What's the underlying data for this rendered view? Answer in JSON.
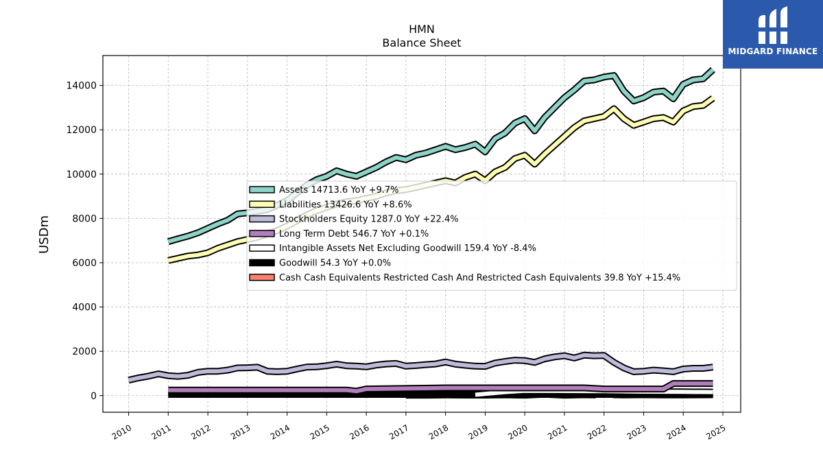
{
  "logo": {
    "text": "MIDGARD FINANCE",
    "background": "#2b5aad"
  },
  "chart_data": {
    "type": "line",
    "title": "HMN",
    "subtitle": "Balance  Sheet",
    "xlabel": "",
    "ylabel": "USDm",
    "xlim": [
      2009.35,
      2025.45
    ],
    "ylim": [
      -750,
      15350
    ],
    "grid": true,
    "legend_position": "center-right",
    "x_ticks": [
      2010,
      2011,
      2012,
      2013,
      2014,
      2015,
      2016,
      2017,
      2018,
      2019,
      2020,
      2021,
      2022,
      2023,
      2024,
      2025
    ],
    "x_tick_labels": [
      "2010",
      "2011",
      "2012",
      "2013",
      "2014",
      "2015",
      "2016",
      "2017",
      "2018",
      "2019",
      "2020",
      "2021",
      "2022",
      "2023",
      "2024",
      "2025"
    ],
    "y_ticks": [
      0,
      2000,
      4000,
      6000,
      8000,
      10000,
      12000,
      14000
    ],
    "y_tick_labels": [
      "0",
      "2000",
      "4000",
      "6000",
      "8000",
      "10000",
      "12000",
      "14000"
    ],
    "series": [
      {
        "name": "Assets",
        "legend_label": "Assets  14713.6 YoY +9.7%",
        "color": "#8dd3c7",
        "x": [
          2011.0,
          2011.25,
          2011.5,
          2011.75,
          2012.0,
          2012.25,
          2012.5,
          2012.75,
          2013.0,
          2013.25,
          2013.5,
          2013.75,
          2014.0,
          2014.25,
          2014.5,
          2014.75,
          2015.0,
          2015.25,
          2015.5,
          2015.75,
          2016.0,
          2016.25,
          2016.5,
          2016.75,
          2017.0,
          2017.25,
          2017.5,
          2017.75,
          2018.0,
          2018.25,
          2018.5,
          2018.75,
          2019.0,
          2019.25,
          2019.5,
          2019.75,
          2020.0,
          2020.25,
          2020.5,
          2020.75,
          2021.0,
          2021.25,
          2021.5,
          2021.75,
          2022.0,
          2022.25,
          2022.5,
          2022.75,
          2023.0,
          2023.25,
          2023.5,
          2023.75,
          2024.0,
          2024.25,
          2024.5,
          2024.75
        ],
        "values": [
          6950,
          7080,
          7200,
          7350,
          7550,
          7750,
          7920,
          8200,
          8250,
          8320,
          8400,
          8600,
          8800,
          9150,
          9500,
          9750,
          9900,
          10150,
          10000,
          9900,
          10100,
          10300,
          10550,
          10750,
          10650,
          10850,
          10950,
          11100,
          11250,
          11100,
          11200,
          11350,
          11000,
          11600,
          11850,
          12300,
          12500,
          11950,
          12550,
          13000,
          13450,
          13800,
          14200,
          14250,
          14380,
          14450,
          13750,
          13300,
          13450,
          13700,
          13750,
          13400,
          14050,
          14250,
          14300,
          14713.6
        ]
      },
      {
        "name": "Liabilities",
        "legend_label": "Liabilities  13426.6 YoY +8.6%",
        "color": "#ffffb3",
        "x": [
          2011.0,
          2011.25,
          2011.5,
          2011.75,
          2012.0,
          2012.25,
          2012.5,
          2012.75,
          2013.0,
          2013.25,
          2013.5,
          2013.75,
          2014.0,
          2014.25,
          2014.5,
          2014.75,
          2015.0,
          2015.25,
          2015.5,
          2015.75,
          2016.0,
          2016.25,
          2016.5,
          2016.75,
          2017.0,
          2017.25,
          2017.5,
          2017.75,
          2018.0,
          2018.25,
          2018.5,
          2018.75,
          2019.0,
          2019.25,
          2019.5,
          2019.75,
          2020.0,
          2020.25,
          2020.5,
          2020.75,
          2021.0,
          2021.25,
          2021.5,
          2021.75,
          2022.0,
          2022.25,
          2022.5,
          2022.75,
          2023.0,
          2023.25,
          2023.5,
          2023.75,
          2024.0,
          2024.25,
          2024.5,
          2024.75
        ],
        "values": [
          6100,
          6200,
          6300,
          6350,
          6450,
          6650,
          6800,
          6950,
          7050,
          7150,
          7300,
          7450,
          7650,
          7900,
          8150,
          8350,
          8500,
          8650,
          8750,
          8800,
          8900,
          9000,
          9150,
          9250,
          9300,
          9400,
          9500,
          9600,
          9700,
          9600,
          9850,
          10000,
          9700,
          10100,
          10300,
          10700,
          10850,
          10450,
          10900,
          11300,
          11700,
          12100,
          12400,
          12500,
          12600,
          12950,
          12500,
          12200,
          12350,
          12500,
          12550,
          12350,
          12850,
          13050,
          13100,
          13426.6
        ]
      },
      {
        "name": "Stockholders Equity",
        "legend_label": "Stockholders Equity  1287.0 YoY +22.4%",
        "color": "#bebada",
        "x": [
          2010.0,
          2010.25,
          2010.5,
          2010.75,
          2011.0,
          2011.25,
          2011.5,
          2011.75,
          2012.0,
          2012.25,
          2012.5,
          2012.75,
          2013.0,
          2013.25,
          2013.5,
          2013.75,
          2014.0,
          2014.25,
          2014.5,
          2014.75,
          2015.0,
          2015.25,
          2015.5,
          2015.75,
          2016.0,
          2016.25,
          2016.5,
          2016.75,
          2017.0,
          2017.25,
          2017.5,
          2017.75,
          2018.0,
          2018.25,
          2018.5,
          2018.75,
          2019.0,
          2019.25,
          2019.5,
          2019.75,
          2020.0,
          2020.25,
          2020.5,
          2020.75,
          2021.0,
          2021.25,
          2021.5,
          2021.75,
          2022.0,
          2022.25,
          2022.5,
          2022.75,
          2023.0,
          2023.25,
          2023.5,
          2023.75,
          2024.0,
          2024.25,
          2024.5,
          2024.75
        ],
        "values": [
          700,
          800,
          880,
          980,
          900,
          870,
          920,
          1050,
          1100,
          1100,
          1150,
          1250,
          1260,
          1280,
          1100,
          1080,
          1100,
          1200,
          1290,
          1300,
          1350,
          1420,
          1350,
          1330,
          1300,
          1380,
          1430,
          1450,
          1330,
          1360,
          1400,
          1430,
          1520,
          1420,
          1370,
          1330,
          1320,
          1470,
          1540,
          1600,
          1580,
          1500,
          1660,
          1750,
          1800,
          1700,
          1830,
          1800,
          1810,
          1500,
          1250,
          1080,
          1100,
          1150,
          1120,
          1080,
          1200,
          1230,
          1230,
          1287.0
        ]
      },
      {
        "name": "Long Term Debt",
        "legend_label": "Long Term Debt  546.7 YoY +0.1%",
        "color": "#b07fbc",
        "x": [
          2011.0,
          2015.25,
          2015.5,
          2015.75,
          2016.0,
          2018.0,
          2021.0,
          2021.5,
          2022.0,
          2023.5,
          2023.75,
          2024.0,
          2024.75
        ],
        "values": [
          250,
          250,
          250,
          200,
          300,
          350,
          350,
          350,
          300,
          300,
          546,
          546,
          546.7
        ]
      },
      {
        "name": "Intangible Assets Net Excluding Goodwill",
        "legend_label": "Intangible Assets Net Excluding Goodwill  159.4 YoY -8.4%",
        "color": "#ffffff",
        "x": [
          2018.75,
          2019.5,
          2020.0,
          2021.0,
          2021.75,
          2022.0,
          2023.0,
          2024.0,
          2024.75
        ],
        "values": [
          40,
          160,
          220,
          210,
          200,
          200,
          180,
          170,
          159.4
        ]
      },
      {
        "name": "Goodwill",
        "legend_label": "Goodwill  54.3 YoY +0.0%",
        "color": "#000000",
        "x": [
          2011.0,
          2017.0,
          2018.75,
          2021.0,
          2024.0,
          2024.75
        ],
        "values": [
          54.3,
          54.3,
          54.3,
          54.3,
          54.3,
          54.3
        ]
      },
      {
        "name": "Cash Cash Equivalents Restricted Cash And Restricted Cash Equivalents",
        "legend_label": "Cash Cash Equivalents Restricted Cash And Restricted Cash Equivalents  39.8 YoY +15.4%",
        "color": "#fb8072",
        "x": [
          2017.0,
          2017.5,
          2018.0,
          2018.5,
          2019.0,
          2019.5,
          2020.0,
          2020.5,
          2021.0,
          2021.5,
          2021.75,
          2022.0,
          2022.25,
          2022.5,
          2023.0,
          2023.5,
          2024.0,
          2024.5,
          2024.75
        ],
        "values": [
          20,
          20,
          30,
          25,
          25,
          35,
          20,
          60,
          20,
          40,
          30,
          150,
          40,
          30,
          40,
          30,
          30,
          35,
          39.8
        ]
      }
    ]
  }
}
